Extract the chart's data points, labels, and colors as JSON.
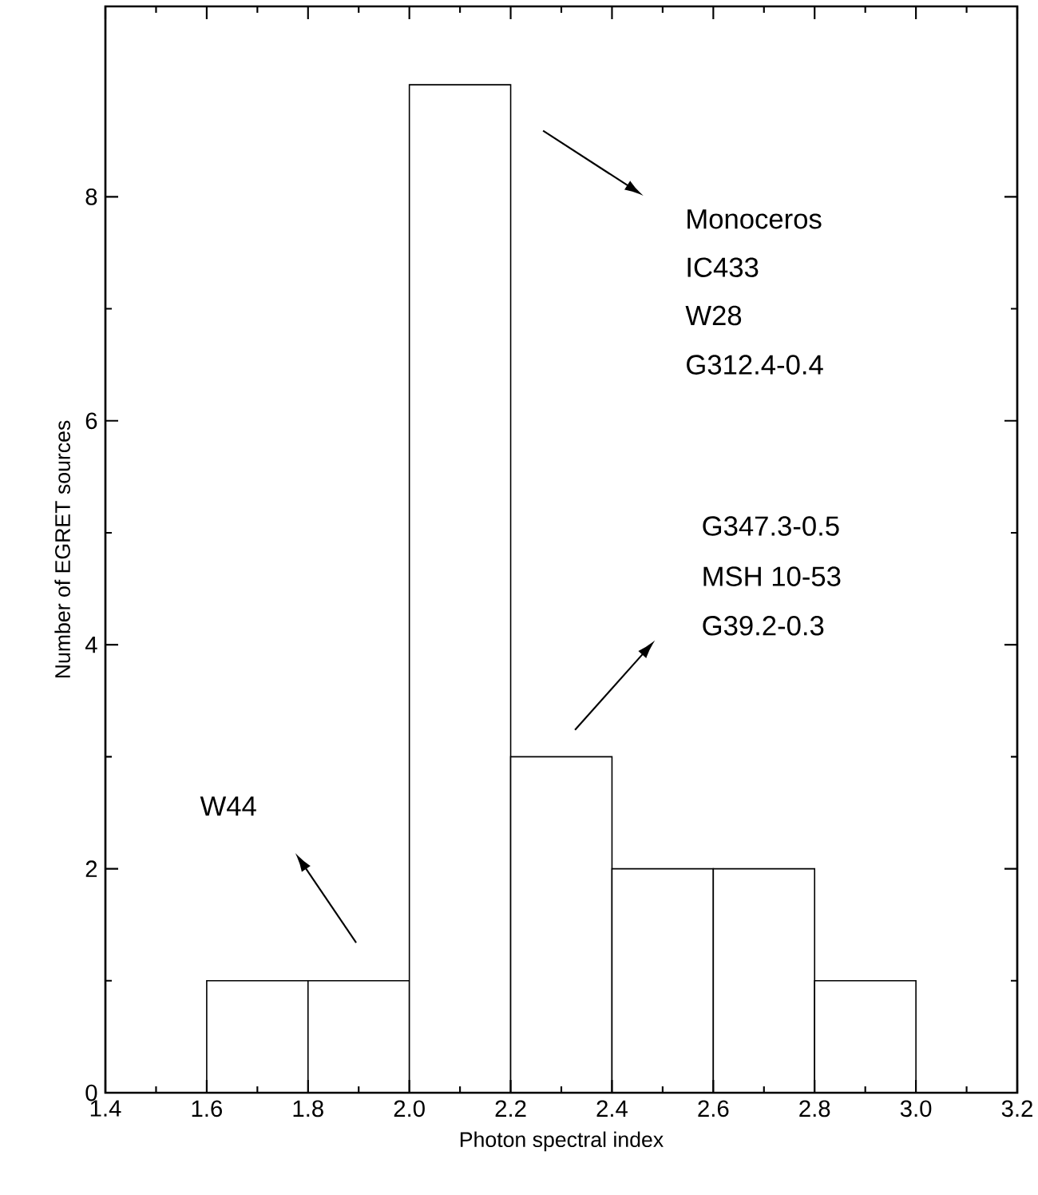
{
  "chart_data": {
    "type": "histogram",
    "xlabel": "Photon spectral index",
    "ylabel": "Number of EGRET sources",
    "bins": [
      1.6,
      1.8,
      2.0,
      2.2,
      2.4,
      2.6,
      2.8,
      3.0
    ],
    "values": [
      1,
      1,
      9,
      3,
      2,
      2,
      1
    ],
    "color": "#000000",
    "xlim": [
      1.4,
      3.2
    ],
    "xticks": [
      {
        "value": 1.4,
        "label": "1.4"
      },
      {
        "value": 1.6,
        "label": "1.6"
      },
      {
        "value": 1.8,
        "label": "1.8"
      },
      {
        "value": 2.0,
        "label": "2.0"
      },
      {
        "value": 2.2,
        "label": "2.2"
      },
      {
        "value": 2.4,
        "label": "2.4"
      },
      {
        "value": 2.6,
        "label": "2.6"
      },
      {
        "value": 2.8,
        "label": "2.8"
      },
      {
        "value": 3.0,
        "label": "3.0"
      },
      {
        "value": 3.2,
        "label": "3.2"
      }
    ],
    "ylim": [
      0,
      9.7
    ],
    "yticks": [
      0,
      2,
      4,
      6,
      8
    ],
    "annotations": [
      "Monoceros",
      "IC433",
      "W28",
      "G312.4-0.4",
      "G347.3-0.5",
      "MSH 10-53",
      "G39.2-0.3",
      "W44"
    ]
  }
}
